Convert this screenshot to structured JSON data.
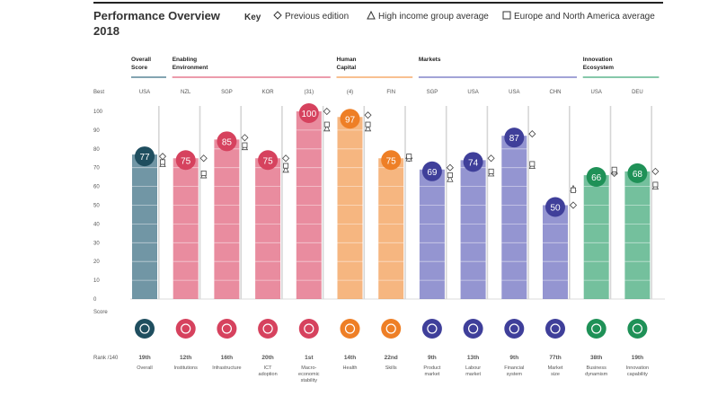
{
  "header": {
    "title_line1": "Performance Overview",
    "title_line2": "2018",
    "key_label": "Key",
    "key_items": [
      {
        "symbol": "diamond",
        "label": "Previous edition"
      },
      {
        "symbol": "triangle",
        "label": "High income group average"
      },
      {
        "symbol": "square",
        "label": "Europe and North America average"
      }
    ]
  },
  "axis": {
    "best_label": "Best",
    "score_label": "Score",
    "rank_label": "Rank /140"
  },
  "groups": [
    {
      "line1": "Overall",
      "line2": "Score",
      "color": "#3a6e82",
      "from": 0,
      "to": 0
    },
    {
      "line1": "Enabling",
      "line2": "Environment",
      "color": "#e0607a",
      "from": 1,
      "to": 4
    },
    {
      "line1": "Human",
      "line2": "Capital",
      "color": "#f39a4f",
      "from": 5,
      "to": 6
    },
    {
      "line1": "Markets",
      "line2": "",
      "color": "#6b6cbf",
      "from": 7,
      "to": 10
    },
    {
      "line1": "Innovation",
      "line2": "Ecosystem",
      "color": "#3fa877",
      "from": 11,
      "to": 12
    }
  ],
  "chart_data": {
    "type": "bar",
    "title": "Performance Overview 2018",
    "ylim": [
      0,
      100
    ],
    "yticks": [
      0,
      10,
      20,
      30,
      40,
      50,
      60,
      70,
      80,
      90,
      100
    ],
    "categories": [
      "Overall",
      "Institutions",
      "Infrastructure",
      "ICT adoption",
      "Macro-economic stability",
      "Health",
      "Skills",
      "Product market",
      "Labour market",
      "Financial system",
      "Market size",
      "Business dynamism",
      "Innovation capability"
    ],
    "category_lines": [
      [
        "Overall"
      ],
      [
        "Institutions"
      ],
      [
        "Infrastructure"
      ],
      [
        "ICT",
        "adoption"
      ],
      [
        "Macro-",
        "economic",
        "stability"
      ],
      [
        "Health"
      ],
      [
        "Skills"
      ],
      [
        "Product",
        "market"
      ],
      [
        "Labour",
        "market"
      ],
      [
        "Financial",
        "system"
      ],
      [
        "Market",
        "size"
      ],
      [
        "Business",
        "dynamism"
      ],
      [
        "Innovation",
        "capability"
      ]
    ],
    "best": [
      "USA",
      "NZL",
      "SGP",
      "KOR",
      "(31)",
      "(4)",
      "FIN",
      "SGP",
      "USA",
      "USA",
      "CHN",
      "USA",
      "DEU"
    ],
    "values": [
      77,
      75,
      85,
      75,
      100,
      97,
      75,
      69,
      74,
      87,
      50,
      66,
      68
    ],
    "ranks": [
      "19th",
      "12th",
      "16th",
      "20th",
      "1st",
      "14th",
      "22nd",
      "9th",
      "13th",
      "9th",
      "77th",
      "38th",
      "19th"
    ],
    "previous_edition": [
      76,
      75,
      86,
      75,
      100,
      98,
      75,
      70,
      75,
      88,
      50,
      67,
      68
    ],
    "high_income_avg": [
      72,
      66,
      81,
      69,
      91,
      91,
      75,
      64,
      67,
      71,
      59,
      68,
      60
    ],
    "europe_na_avg": [
      73,
      67,
      82,
      71,
      93,
      93,
      76,
      66,
      68,
      72,
      58,
      69,
      61
    ],
    "colors": [
      "#3a6e82",
      "#e0607a",
      "#e0607a",
      "#e0607a",
      "#e0607a",
      "#f39a4f",
      "#f39a4f",
      "#6b6cbf",
      "#6b6cbf",
      "#6b6cbf",
      "#6b6cbf",
      "#3fa877",
      "#3fa877"
    ],
    "dark_colors": [
      "#1f4e5f",
      "#d6425e",
      "#d6425e",
      "#d6425e",
      "#d6425e",
      "#ee7f26",
      "#ee7f26",
      "#3f3f9a",
      "#3f3f9a",
      "#3f3f9a",
      "#3f3f9a",
      "#1f9157",
      "#1f9157"
    ],
    "icons": [
      "target-icon",
      "institution-icon",
      "train-icon",
      "chip-icon",
      "percent-icon",
      "heart-icon",
      "person-icon",
      "tag-icon",
      "people-icon",
      "card-icon",
      "expand-icon",
      "building-icon",
      "bulb-icon"
    ]
  }
}
